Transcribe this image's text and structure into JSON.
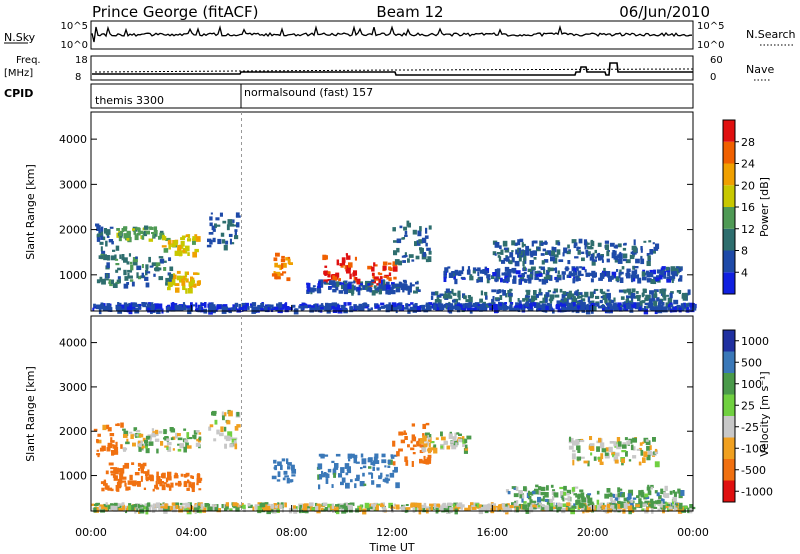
{
  "header": {
    "station": "Prince George (fitACF)",
    "beam": "Beam 12",
    "date": "06/Jun/2010"
  },
  "nsky_panel": {
    "left_label": "N.Sky",
    "left_ticks": [
      "10^5",
      "10^0"
    ],
    "right_label": "N.Search",
    "right_ticks": [
      "10^5",
      "10^0"
    ]
  },
  "freq_panel": {
    "left_label_line1": "Freq.",
    "left_label_line2": "[MHz]",
    "left_ticks": [
      "18",
      "8"
    ],
    "right_label": "Nave",
    "right_ticks": [
      "60",
      "0"
    ]
  },
  "cpid_panel": {
    "label": "CPID",
    "modes": [
      "themis 3300",
      "normalsound (fast) 157"
    ]
  },
  "colors": {
    "power_scale": [
      "#1020e0",
      "#1e4aa8",
      "#2e6e6e",
      "#4f9a55",
      "#c8c800",
      "#f0a000",
      "#f06000",
      "#e01010"
    ],
    "velocity_scale": [
      "#2030a0",
      "#3a78b8",
      "#4a9a4a",
      "#70d040",
      "#c8c8c8",
      "#f0a020",
      "#f07010",
      "#e01010"
    ]
  },
  "chart_data": [
    {
      "type": "heatmap",
      "title": "",
      "xlabel": "Time UT",
      "ylabel": "Slant Range [km]",
      "x_ticks": [
        "00:00",
        "04:00",
        "08:00",
        "12:00",
        "16:00",
        "20:00",
        "00:00"
      ],
      "y_ticks": [
        "1000",
        "2000",
        "3000",
        "4000"
      ],
      "xlim": [
        0,
        24
      ],
      "ylim": [
        200,
        4600
      ],
      "colorbar": {
        "label": "Power [dB]",
        "ticks": [
          "28",
          "24",
          "20",
          "16",
          "12",
          "8",
          "4"
        ],
        "range": [
          0,
          32
        ]
      },
      "regions": [
        {
          "t0": 0.1,
          "t1": 1.0,
          "r0": 1500,
          "r1": 2200,
          "level": 9
        },
        {
          "t0": 1.0,
          "t1": 2.8,
          "r0": 1800,
          "r1": 2100,
          "level": 14
        },
        {
          "t0": 2.8,
          "t1": 4.2,
          "r0": 1500,
          "r1": 1900,
          "level": 18
        },
        {
          "t0": 0.2,
          "t1": 3.2,
          "r0": 800,
          "r1": 1500,
          "level": 10
        },
        {
          "t0": 3.0,
          "t1": 4.3,
          "r0": 700,
          "r1": 1100,
          "level": 20
        },
        {
          "t0": 4.6,
          "t1": 5.8,
          "r0": 1600,
          "r1": 2400,
          "level": 7
        },
        {
          "t0": 7.2,
          "t1": 8.0,
          "r0": 900,
          "r1": 1500,
          "level": 24
        },
        {
          "t0": 9.2,
          "t1": 10.6,
          "r0": 800,
          "r1": 1500,
          "level": 29
        },
        {
          "t0": 10.9,
          "t1": 12.1,
          "r0": 800,
          "r1": 1300,
          "level": 27
        },
        {
          "t0": 8.5,
          "t1": 13.0,
          "r0": 650,
          "r1": 900,
          "level": 6
        },
        {
          "t0": 12.0,
          "t1": 13.5,
          "r0": 1300,
          "r1": 2200,
          "level": 8
        },
        {
          "t0": 13.5,
          "t1": 23.8,
          "r0": 300,
          "r1": 700,
          "level": 9
        },
        {
          "t0": 14.0,
          "t1": 23.5,
          "r0": 900,
          "r1": 1200,
          "level": 6
        },
        {
          "t0": 16.0,
          "t1": 22.5,
          "r0": 1300,
          "r1": 1800,
          "level": 7
        },
        {
          "t0": 0.0,
          "t1": 24.0,
          "r0": 250,
          "r1": 400,
          "level": 5
        }
      ]
    },
    {
      "type": "heatmap",
      "title": "",
      "xlabel": "Time UT",
      "ylabel": "Slant Range [km]",
      "x_ticks": [
        "00:00",
        "04:00",
        "08:00",
        "12:00",
        "16:00",
        "20:00",
        "00:00"
      ],
      "y_ticks": [
        "1000",
        "2000",
        "3000",
        "4000"
      ],
      "xlim": [
        0,
        24
      ],
      "ylim": [
        200,
        4600
      ],
      "colorbar": {
        "label": "Velocity [m s⁻¹]",
        "ticks": [
          "1000",
          "500",
          "100",
          "25",
          "-25",
          "-100",
          "-500",
          "-1000"
        ]
      },
      "regions": [
        {
          "t0": 0.1,
          "t1": 1.2,
          "r0": 1500,
          "r1": 2200,
          "velocity": -150
        },
        {
          "t0": 1.2,
          "t1": 4.3,
          "r0": 1600,
          "r1": 2100,
          "velocity": 0
        },
        {
          "t0": 0.3,
          "t1": 2.5,
          "r0": 700,
          "r1": 1300,
          "velocity": -200
        },
        {
          "t0": 2.5,
          "t1": 4.3,
          "r0": 700,
          "r1": 1100,
          "velocity": -200
        },
        {
          "t0": 4.6,
          "t1": 5.8,
          "r0": 1700,
          "r1": 2500,
          "velocity": 0
        },
        {
          "t0": 7.2,
          "t1": 8.0,
          "r0": 900,
          "r1": 1500,
          "velocity": 200
        },
        {
          "t0": 9.0,
          "t1": 12.2,
          "r0": 800,
          "r1": 1500,
          "velocity": 150
        },
        {
          "t0": 12.0,
          "t1": 13.5,
          "r0": 1300,
          "r1": 2200,
          "velocity": -200
        },
        {
          "t0": 13.0,
          "t1": 15.0,
          "r0": 1600,
          "r1": 2000,
          "velocity": 0
        },
        {
          "t0": 16.5,
          "t1": 23.5,
          "r0": 300,
          "r1": 800,
          "velocity": 60
        },
        {
          "t0": 19.0,
          "t1": 22.5,
          "r0": 1300,
          "r1": 1900,
          "velocity": 0
        },
        {
          "t0": 0.0,
          "t1": 24.0,
          "r0": 250,
          "r1": 400,
          "velocity": 0
        }
      ]
    }
  ]
}
